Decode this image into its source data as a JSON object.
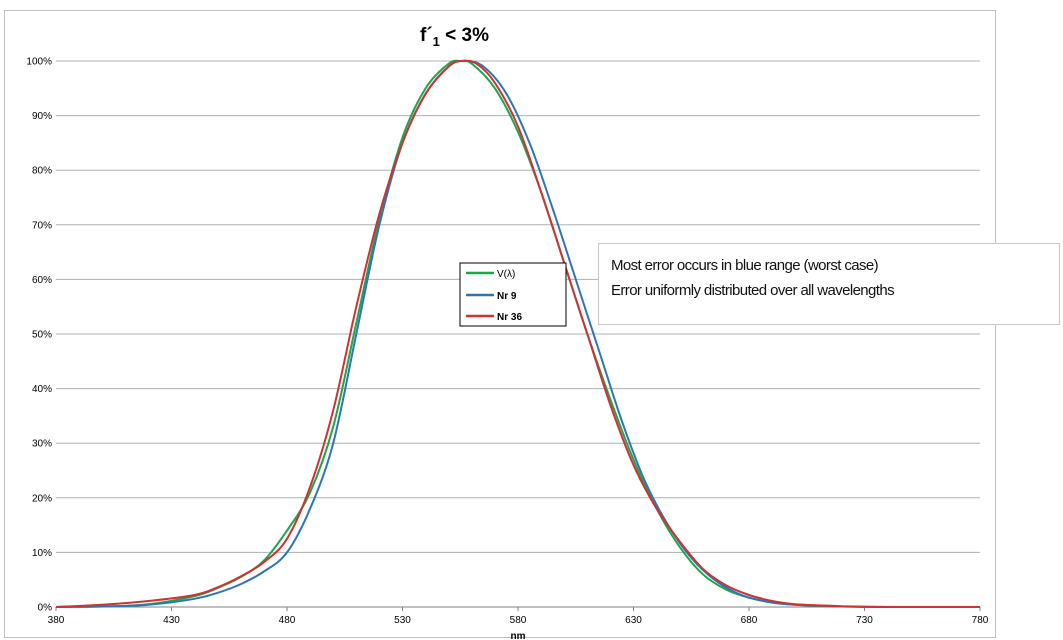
{
  "chart_data": {
    "type": "line",
    "title_main": "f´",
    "title_sub": "1",
    "title_rest": " < 3%",
    "xlabel": "nm",
    "ylabel": "",
    "xlim": [
      380,
      780
    ],
    "ylim": [
      0,
      100
    ],
    "x_ticks": [
      "380",
      "430",
      "480",
      "530",
      "580",
      "630",
      "680",
      "730",
      "780"
    ],
    "y_ticks": [
      "0%",
      "10%",
      "20%",
      "30%",
      "40%",
      "50%",
      "60%",
      "70%",
      "80%",
      "90%",
      "100%"
    ],
    "grid": "horizontal",
    "legend_position": "center-right",
    "series": [
      {
        "name": "V(λ)",
        "color": "#1fa64a",
        "points": [
          [
            380,
            0
          ],
          [
            400,
            0.1
          ],
          [
            420,
            0.5
          ],
          [
            440,
            2
          ],
          [
            450,
            3.5
          ],
          [
            460,
            5.5
          ],
          [
            470,
            8.5
          ],
          [
            480,
            14
          ],
          [
            490,
            21
          ],
          [
            500,
            33
          ],
          [
            510,
            52
          ],
          [
            520,
            71
          ],
          [
            530,
            86
          ],
          [
            540,
            95
          ],
          [
            550,
            99.5
          ],
          [
            555,
            100
          ],
          [
            560,
            99.5
          ],
          [
            570,
            95
          ],
          [
            580,
            87
          ],
          [
            590,
            76
          ],
          [
            600,
            63
          ],
          [
            610,
            50
          ],
          [
            620,
            38
          ],
          [
            630,
            27
          ],
          [
            640,
            18
          ],
          [
            650,
            11
          ],
          [
            660,
            6
          ],
          [
            670,
            3.2
          ],
          [
            680,
            1.7
          ],
          [
            690,
            0.8
          ],
          [
            700,
            0.4
          ],
          [
            720,
            0.1
          ],
          [
            740,
            0
          ],
          [
            780,
            0
          ]
        ]
      },
      {
        "name": "Nr 9",
        "color": "#2e75b6",
        "points": [
          [
            380,
            0
          ],
          [
            400,
            0.1
          ],
          [
            420,
            0.4
          ],
          [
            440,
            1.5
          ],
          [
            450,
            2.6
          ],
          [
            460,
            4.2
          ],
          [
            470,
            6.5
          ],
          [
            480,
            10
          ],
          [
            490,
            18
          ],
          [
            500,
            30
          ],
          [
            510,
            50
          ],
          [
            520,
            70
          ],
          [
            530,
            85
          ],
          [
            540,
            94
          ],
          [
            550,
            99
          ],
          [
            557,
            100
          ],
          [
            565,
            99
          ],
          [
            575,
            94
          ],
          [
            585,
            85
          ],
          [
            595,
            73
          ],
          [
            605,
            60
          ],
          [
            615,
            47
          ],
          [
            625,
            34
          ],
          [
            635,
            23
          ],
          [
            645,
            15
          ],
          [
            655,
            9
          ],
          [
            665,
            5
          ],
          [
            675,
            2.5
          ],
          [
            685,
            1.2
          ],
          [
            700,
            0.4
          ],
          [
            720,
            0.1
          ],
          [
            740,
            0
          ],
          [
            780,
            0
          ]
        ]
      },
      {
        "name": "Nr 36",
        "color": "#cc3333",
        "points": [
          [
            380,
            0
          ],
          [
            400,
            0.4
          ],
          [
            420,
            1.1
          ],
          [
            440,
            2.2
          ],
          [
            450,
            3.6
          ],
          [
            460,
            5.6
          ],
          [
            470,
            8.2
          ],
          [
            480,
            12.5
          ],
          [
            490,
            22
          ],
          [
            500,
            36
          ],
          [
            510,
            55
          ],
          [
            520,
            72
          ],
          [
            530,
            85
          ],
          [
            540,
            94
          ],
          [
            550,
            99
          ],
          [
            555,
            100
          ],
          [
            562,
            99.5
          ],
          [
            570,
            96
          ],
          [
            580,
            88
          ],
          [
            590,
            76
          ],
          [
            600,
            63
          ],
          [
            610,
            50
          ],
          [
            620,
            37
          ],
          [
            630,
            26
          ],
          [
            640,
            18
          ],
          [
            650,
            12
          ],
          [
            660,
            7
          ],
          [
            670,
            4
          ],
          [
            680,
            2.2
          ],
          [
            690,
            1.1
          ],
          [
            700,
            0.5
          ],
          [
            720,
            0.15
          ],
          [
            740,
            0
          ],
          [
            780,
            0
          ]
        ]
      }
    ]
  },
  "annotation": {
    "line1": "Most error occurs in blue range (worst case)",
    "line2": "Error uniformly distributed over all wavelengths"
  }
}
